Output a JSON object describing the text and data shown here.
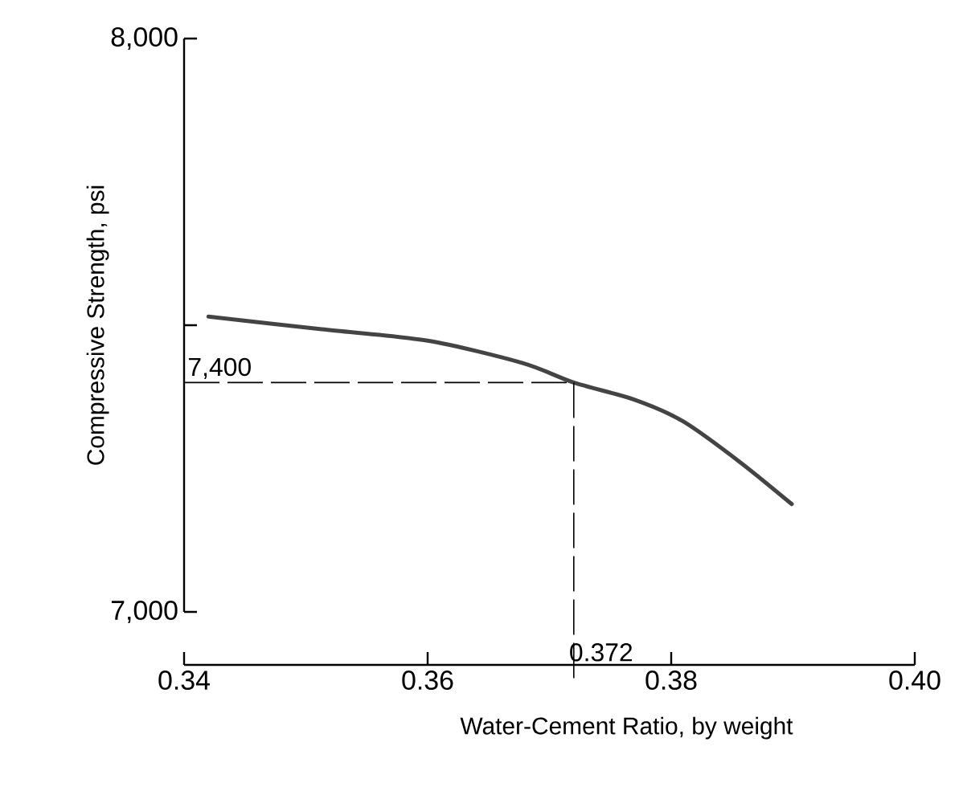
{
  "chart_data": {
    "type": "line",
    "xlabel": "Water-Cement Ratio, by weight",
    "ylabel": "Compressive Strength, psi",
    "x": [
      0.342,
      0.3513,
      0.36,
      0.3678,
      0.372,
      0.377,
      0.381,
      0.3856,
      0.3899
    ],
    "series": [
      {
        "color": "#444444",
        "values": [
          7515,
          7493,
          7473,
          7434,
          7400,
          7370,
          7332,
          7262,
          7188
        ]
      }
    ],
    "xlim": [
      0.34,
      0.4
    ],
    "ylim": [
      7000,
      8000
    ],
    "xticks": [
      0.34,
      0.36,
      0.38,
      {
        "value": 0.4,
        "label": "0.40"
      }
    ],
    "yticks": [
      {
        "value": 7000,
        "label": "7,000"
      },
      {
        "value": 7500,
        "label": null
      },
      {
        "value": 8000,
        "label": "8,000"
      }
    ],
    "ref_lines": [
      {
        "axis": "y",
        "value": 7400,
        "label": "7,400",
        "line_style": "dashed"
      },
      {
        "axis": "x",
        "value": 0.372,
        "label": "0.372",
        "line_style": "dashed"
      }
    ],
    "grid": false,
    "marker": "none",
    "line_style": "solid"
  }
}
